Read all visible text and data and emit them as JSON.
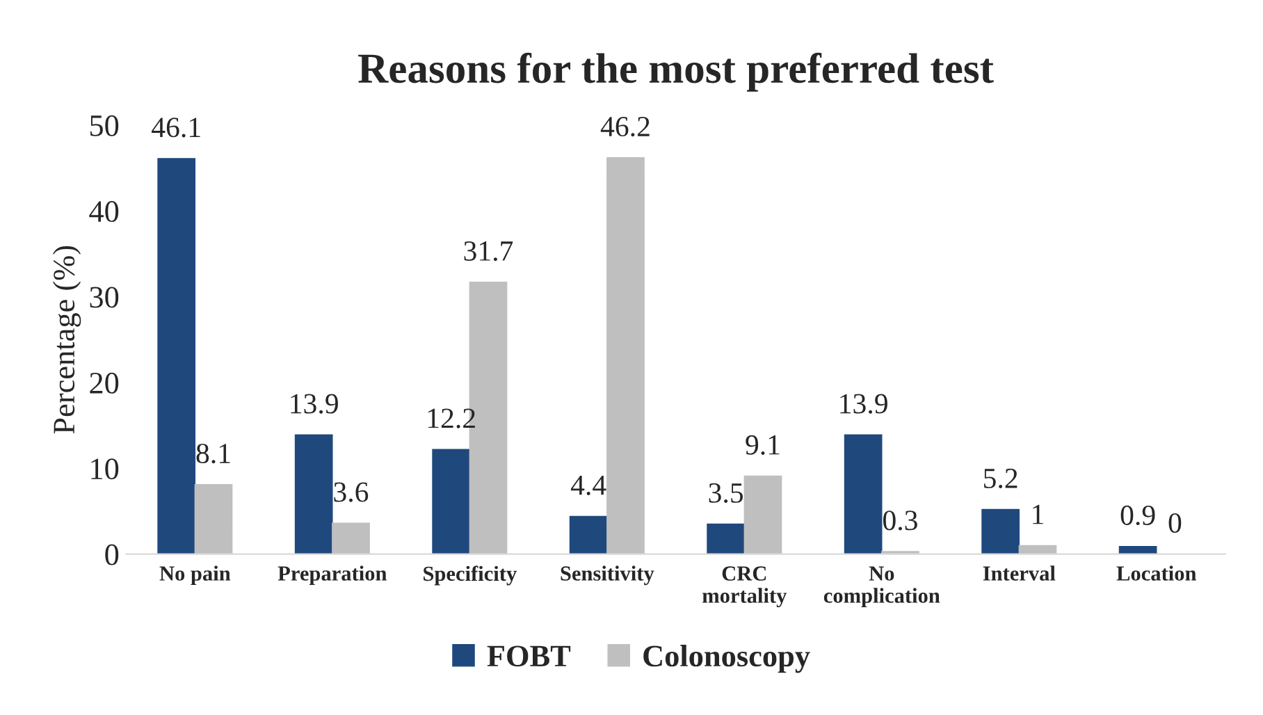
{
  "chart_data": {
    "type": "bar",
    "title": "Reasons for the most preferred test",
    "ylabel": "Percentage (%)",
    "categories": [
      "No pain",
      "Preparation",
      "Specificity",
      "Sensitivity",
      "CRC mortality",
      "No complication",
      "Interval",
      "Location"
    ],
    "series": [
      {
        "name": "FOBT",
        "color": "#1f497d",
        "values": [
          46.1,
          13.9,
          12.2,
          4.4,
          3.5,
          13.9,
          5.2,
          0.9
        ]
      },
      {
        "name": "Colonoscopy",
        "color": "#bfbfbf",
        "values": [
          8.1,
          3.6,
          31.7,
          46.2,
          9.1,
          0.3,
          1,
          0
        ]
      }
    ],
    "ylim": [
      0,
      50
    ],
    "yticks": [
      0,
      10,
      20,
      30,
      40,
      50
    ],
    "data_labels": true,
    "grid": false,
    "legend": "bottom"
  }
}
